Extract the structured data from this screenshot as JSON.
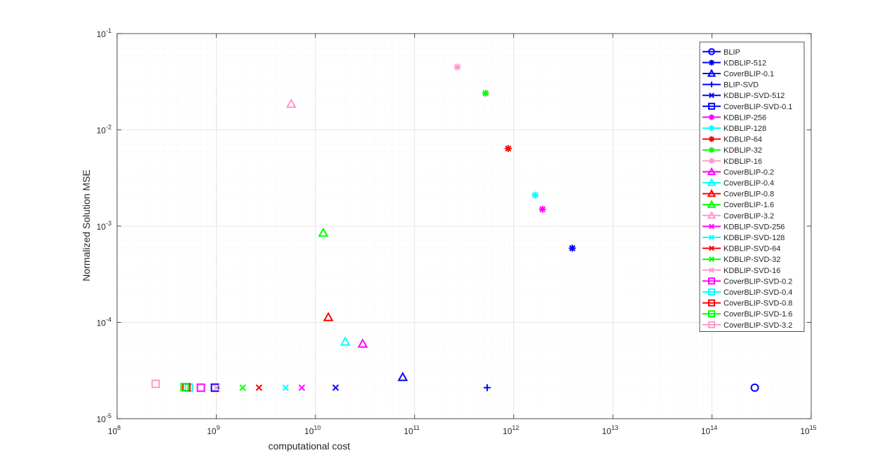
{
  "chart_data": {
    "type": "scatter",
    "xlabel": "computational cost",
    "ylabel": "Normalized Solution MSE",
    "xscale": "log",
    "yscale": "log",
    "xlim": [
      100000000,
      1000000000000000
    ],
    "ylim": [
      1e-05,
      0.1
    ],
    "x_ticks": [
      {
        "base": "10",
        "exp": "8"
      },
      {
        "base": "10",
        "exp": "9"
      },
      {
        "base": "10",
        "exp": "10"
      },
      {
        "base": "10",
        "exp": "11"
      },
      {
        "base": "10",
        "exp": "12"
      },
      {
        "base": "10",
        "exp": "13"
      },
      {
        "base": "10",
        "exp": "14"
      },
      {
        "base": "10",
        "exp": "15"
      }
    ],
    "y_ticks": [
      {
        "base": "10",
        "exp": "-5"
      },
      {
        "base": "10",
        "exp": "-4"
      },
      {
        "base": "10",
        "exp": "-3"
      },
      {
        "base": "10",
        "exp": "-2"
      },
      {
        "base": "10",
        "exp": "-1"
      }
    ],
    "grid": true,
    "legend_position": "top-right",
    "series": [
      {
        "name": "BLIP",
        "color": "#0000ff",
        "marker": "circle",
        "x": 270000000000000,
        "y": 2.1e-05
      },
      {
        "name": "KDBLIP-512",
        "color": "#0000ff",
        "marker": "asterisk",
        "x": 3900000000000,
        "y": 0.00059
      },
      {
        "name": "CoverBLIP-0.1",
        "color": "#0000ff",
        "marker": "triangle",
        "x": 76000000000,
        "y": 2.7e-05
      },
      {
        "name": "BLIP-SVD",
        "color": "#0000ff",
        "marker": "plus",
        "x": 540000000000,
        "y": 2.1e-05
      },
      {
        "name": "KDBLIP-SVD-512",
        "color": "#0000ff",
        "marker": "x",
        "x": 16000000000,
        "y": 2.1e-05
      },
      {
        "name": "CoverBLIP-SVD-0.1",
        "color": "#0000ff",
        "marker": "square",
        "x": 970000000,
        "y": 2.1e-05
      },
      {
        "name": "KDBLIP-256",
        "color": "#ff00ff",
        "marker": "asterisk",
        "x": 1950000000000,
        "y": 0.0015
      },
      {
        "name": "KDBLIP-128",
        "color": "#00ffff",
        "marker": "asterisk",
        "x": 1650000000000,
        "y": 0.0021
      },
      {
        "name": "KDBLIP-64",
        "color": "#ff0000",
        "marker": "asterisk",
        "x": 880000000000,
        "y": 0.0064
      },
      {
        "name": "KDBLIP-32",
        "color": "#00ff00",
        "marker": "asterisk",
        "x": 520000000000,
        "y": 0.024
      },
      {
        "name": "KDBLIP-16",
        "color": "#ff99cc",
        "marker": "asterisk",
        "x": 270000000000,
        "y": 0.045
      },
      {
        "name": "CoverBLIP-0.2",
        "color": "#ff00ff",
        "marker": "triangle",
        "x": 30000000000,
        "y": 6e-05
      },
      {
        "name": "CoverBLIP-0.4",
        "color": "#00ffff",
        "marker": "triangle",
        "x": 20000000000,
        "y": 6.3e-05
      },
      {
        "name": "CoverBLIP-0.8",
        "color": "#ff0000",
        "marker": "triangle",
        "x": 13500000000,
        "y": 0.000113
      },
      {
        "name": "CoverBLIP-1.6",
        "color": "#00ff00",
        "marker": "triangle",
        "x": 12000000000,
        "y": 0.00085
      },
      {
        "name": "CoverBLIP-3.2",
        "color": "#ff99cc",
        "marker": "triangle",
        "x": 5700000000,
        "y": 0.0186
      },
      {
        "name": "KDBLIP-SVD-256",
        "color": "#ff00ff",
        "marker": "x",
        "x": 7300000000,
        "y": 2.1e-05
      },
      {
        "name": "KDBLIP-SVD-128",
        "color": "#00ffff",
        "marker": "x",
        "x": 5000000000,
        "y": 2.1e-05
      },
      {
        "name": "KDBLIP-SVD-64",
        "color": "#ff0000",
        "marker": "x",
        "x": 2700000000,
        "y": 2.1e-05
      },
      {
        "name": "KDBLIP-SVD-32",
        "color": "#00ff00",
        "marker": "x",
        "x": 1850000000,
        "y": 2.1e-05
      },
      {
        "name": "KDBLIP-SVD-16",
        "color": "#ff99cc",
        "marker": "x",
        "x": 1000000000,
        "y": 2.1e-05
      },
      {
        "name": "CoverBLIP-SVD-0.2",
        "color": "#ff00ff",
        "marker": "square",
        "x": 700000000,
        "y": 2.1e-05
      },
      {
        "name": "CoverBLIP-SVD-0.4",
        "color": "#00ffff",
        "marker": "square",
        "x": 530000000,
        "y": 2.1e-05
      },
      {
        "name": "CoverBLIP-SVD-0.8",
        "color": "#ff0000",
        "marker": "square",
        "x": 500000000,
        "y": 2.12e-05
      },
      {
        "name": "CoverBLIP-SVD-1.6",
        "color": "#00ff00",
        "marker": "square",
        "x": 480000000,
        "y": 2.13e-05
      },
      {
        "name": "CoverBLIP-SVD-3.2",
        "color": "#ff99cc",
        "marker": "square",
        "x": 245000000,
        "y": 2.3e-05
      }
    ]
  }
}
